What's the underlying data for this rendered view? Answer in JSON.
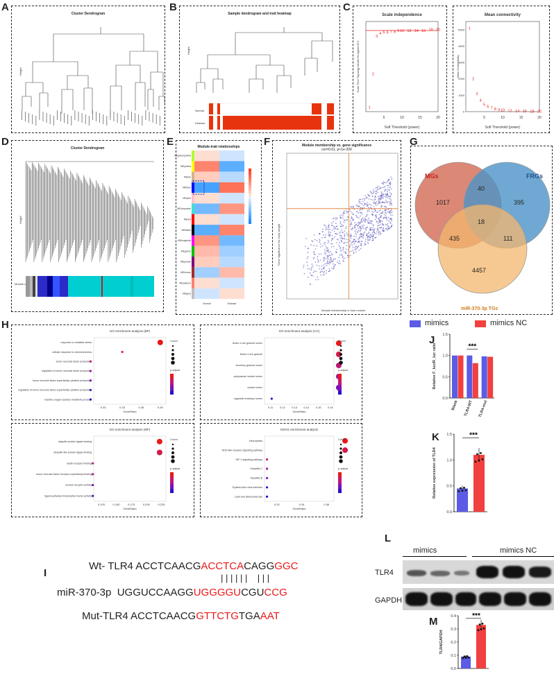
{
  "panels": {
    "A": {
      "letter": "A",
      "title": "Cluster Dendrogram",
      "ylabel": "Height"
    },
    "B": {
      "letter": "B",
      "title": "Sample dendrogram and trait heatmap",
      "ylabel": "Height",
      "traits": [
        "Normal",
        "Disease"
      ]
    },
    "C": {
      "letter": "C"
    },
    "D": {
      "letter": "D",
      "title": "Cluster Dendrogram",
      "ylabel": "Height",
      "module_label": "Module colors"
    },
    "E": {
      "letter": "E",
      "title": "Module-trait relationships",
      "modules": [
        "MEgreenyellow",
        "MEyellow",
        "MEtan",
        "MEblue",
        "MEpink",
        "MEturquoise",
        "MEred",
        "MEblack",
        "MEmagenta",
        "MEgreen",
        "MEpurple",
        "MEbrown",
        "MEsalmon",
        "MEgrey"
      ],
      "columns": [
        "Normal",
        "Disease"
      ]
    },
    "F": {
      "letter": "F",
      "title": "Module membership vs. gene significance",
      "subtitle": "cor=0.61, p<1e-200",
      "xlabel": "Module Membership in blue module",
      "ylabel": "Gene significance for body weight"
    },
    "G": {
      "letter": "G",
      "sets": [
        "MGs",
        "FRGs",
        "miR-370-3p TGs"
      ],
      "counts": {
        "mg_only": "1017",
        "frg_only": "395",
        "tg_only": "4457",
        "mg_frg": "40",
        "mg_tg": "435",
        "frg_tg": "111",
        "all": "18"
      }
    },
    "H": {
      "letter": "H"
    },
    "I": {
      "letter": "I"
    },
    "J": {
      "letter": "J"
    },
    "K": {
      "letter": "K"
    },
    "L": {
      "letter": "L",
      "groups": [
        "mimics",
        "mimics NC"
      ],
      "rows": [
        "TLR4",
        "GAPDH"
      ]
    },
    "M": {
      "letter": "M"
    }
  },
  "legend": {
    "mimics": "mimics",
    "mimics_nc": "mimics NC",
    "color_mimics": "#5b5be6",
    "color_nc": "#f0403f"
  },
  "sequences": {
    "wt_prefix": "Wt- TLR4 ACCTCAACG",
    "wt_red1": "ACCTCA",
    "wt_mid": "CAGG",
    "wt_red2": "GGC",
    "mir_prefix": "miR-370-3p  UGGUCCAAGG",
    "mir_red1": "UGGGGU",
    "mir_mid": "CGU",
    "mir_red2": "CCG",
    "mut_prefix": "Mut-TLR4 ACCTCAACG",
    "mut_red1": "GTTCTG",
    "mut_mid": "TGA",
    "mut_red2": "AAT",
    "bars": "| | | | | |    | | |"
  },
  "chart_data": [
    {
      "type": "scatter",
      "id": "C1",
      "title": "Scale independence",
      "xlabel": "Soft Threshold (power)",
      "ylabel": "Scale Free Topology Model Fit,signed R^2",
      "x": [
        1,
        2,
        3,
        4,
        5,
        6,
        7,
        8,
        9,
        10,
        12,
        14,
        16,
        18,
        20
      ],
      "y": [
        0.05,
        0.42,
        0.84,
        0.87,
        0.88,
        0.88,
        0.89,
        0.89,
        0.9,
        0.9,
        0.9,
        0.9,
        0.9,
        0.91,
        0.91
      ],
      "xlim": [
        0,
        20
      ],
      "ylim": [
        0,
        1
      ],
      "xticks": [
        "5",
        "10",
        "15",
        "20"
      ],
      "hline": 0.9
    },
    {
      "type": "scatter",
      "id": "C2",
      "title": "Mean connectivity",
      "xlabel": "Soft Threshold (power)",
      "ylabel": "Mean Connectivity",
      "x": [
        1,
        2,
        3,
        4,
        5,
        6,
        7,
        8,
        9,
        10,
        12,
        14,
        16,
        18,
        20
      ],
      "y": [
        5100,
        2000,
        1100,
        700,
        450,
        320,
        230,
        170,
        130,
        100,
        70,
        50,
        40,
        30,
        25
      ],
      "xlim": [
        0,
        20
      ],
      "ylim": [
        0,
        5500
      ],
      "xticks": [
        "5",
        "10",
        "15",
        "20"
      ],
      "yticks": [
        "0",
        "1000",
        "2000",
        "3000",
        "4000",
        "5000"
      ]
    },
    {
      "type": "scatter",
      "id": "H1",
      "title": "GO enrichment analysis (BP)",
      "xlabel": "GeneRatio",
      "categories": [
        "response to oxidative stress",
        "cellular response to chemical stress",
        "tumor necrosis factor production",
        "regulation of tumor necrosis factor production",
        "tumor necrosis factor superfamily cytokine production",
        "regulation of tumor necrosis factor superfamily cytokine production",
        "reactive oxygen species metabolic process"
      ],
      "x": [
        0.39,
        0.33,
        0.28,
        0.28,
        0.28,
        0.28,
        0.28
      ],
      "xticks": [
        "0.30",
        "0.33",
        "0.36",
        "0.39"
      ],
      "legend_title": "Count",
      "legend_p": "p.adjust"
    },
    {
      "type": "scatter",
      "id": "H2",
      "title": "GO enrichment analysis (CC)",
      "xlabel": "GeneRatio",
      "categories": [
        "ficolin-1-rich granule lumen",
        "ficolin-1-rich granule",
        "secretory granule lumen",
        "cytoplasmic vesicle lumen",
        "vesicle lumen",
        "organelle envelope lumen"
      ],
      "x": [
        0.167,
        0.167,
        0.167,
        0.167,
        0.167,
        0.111
      ],
      "xticks": [
        "0.11",
        "0.12",
        "0.13",
        "0.14",
        "0.15",
        "0.16"
      ],
      "legend_title": "Count",
      "legend_p": "p.adjust"
    },
    {
      "type": "scatter",
      "id": "H3",
      "title": "GO enrichment analysis (MF)",
      "xlabel": "GeneRatio",
      "categories": [
        "ubiquitin protein ligase binding",
        "ubiquitin-like protein ligase binding",
        "death receptor binding",
        "tumor necrosis factor receptor superfamily binding",
        "nuclear receptor activity",
        "ligand-activated transcription factor activity"
      ],
      "x": [
        0.222,
        0.222,
        0.111,
        0.111,
        0.111,
        0.111
      ],
      "xticks": [
        "0.125",
        "0.150",
        "0.175",
        "0.200",
        "0.225"
      ],
      "legend_title": "Count",
      "legend_p": "p.adjust"
    },
    {
      "type": "scatter",
      "id": "H4",
      "title": "KEGG enrichment analysis",
      "xlabel": "GeneRatio",
      "categories": [
        "Necroptosis",
        "NOD-like receptor signaling pathway",
        "HIF-1 signaling pathway",
        "Hepatitis C",
        "Hepatitis B",
        "Epstein-Barr virus infection",
        "Lipid and atherosclerosis"
      ],
      "x": [
        0.375,
        0.375,
        0.312,
        0.312,
        0.312,
        0.312,
        0.312
      ],
      "xticks": [
        "0.32",
        "0.34",
        "0.36"
      ],
      "legend_title": "Count",
      "legend_p": "p.adjust"
    },
    {
      "type": "bar",
      "id": "J",
      "ylabel": "Relative F_luc/R_luc ratio",
      "categories": [
        "Blank",
        "TLR4-WT",
        "TLR4-mut"
      ],
      "series": [
        {
          "name": "mimics",
          "values": [
            1.0,
            1.0,
            0.98
          ]
        },
        {
          "name": "mimics NC",
          "values": [
            1.0,
            0.82,
            0.97
          ]
        }
      ],
      "ylim": [
        0,
        1.5
      ],
      "yticks": [
        "0.0",
        "0.5",
        "1.0",
        "1.5"
      ],
      "annotation": "***"
    },
    {
      "type": "bar",
      "id": "K",
      "ylabel": "Relative expression of TLR4",
      "categories": [
        "mimics",
        "mimics NC"
      ],
      "values": [
        0.45,
        1.1
      ],
      "ylim": [
        0,
        1.5
      ],
      "yticks": [
        "0.0",
        "0.5",
        "1.0",
        "1.5"
      ],
      "annotation": "***"
    },
    {
      "type": "bar",
      "id": "M",
      "ylabel": "TLR4/GAPDH",
      "categories": [
        "mimics",
        "mimics NC"
      ],
      "values": [
        0.09,
        0.33
      ],
      "ylim": [
        0,
        0.4
      ],
      "yticks": [
        "0.0",
        "0.1",
        "0.2",
        "0.3",
        "0.4"
      ],
      "annotation": "***"
    }
  ]
}
